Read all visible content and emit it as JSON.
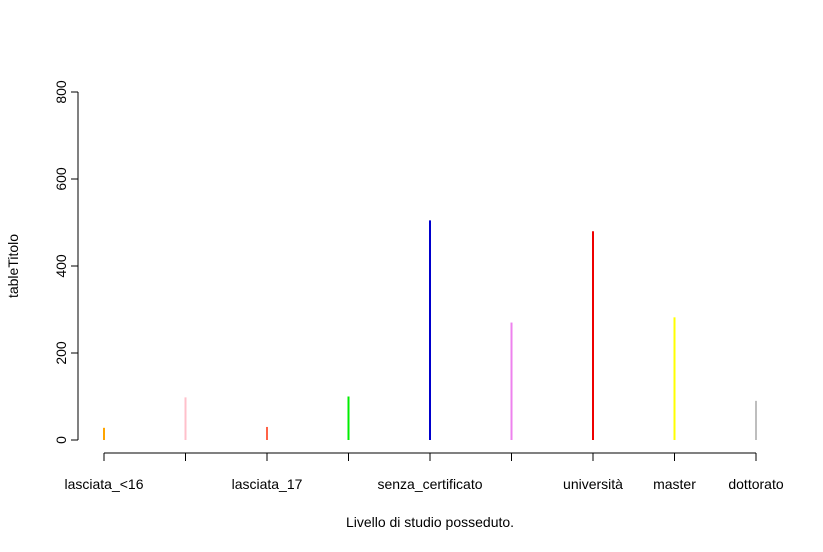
{
  "chart_data": {
    "type": "bar",
    "style": "histogram-spikes",
    "title": "",
    "xlabel": "Livello di studio posseduto.",
    "ylabel": "tableTitolo",
    "ylim": [
      0,
      800
    ],
    "yticks": [
      0,
      200,
      400,
      600,
      800
    ],
    "grid": false,
    "legend": "none",
    "categories": [
      "lasciata_<16",
      "",
      "lasciata_17",
      "",
      "senza_certificato",
      "",
      "università",
      "master",
      "dottorato"
    ],
    "values": [
      28,
      98,
      30,
      100,
      505,
      270,
      480,
      282,
      90
    ],
    "colors": [
      "#FFA500",
      "#FFC0CB",
      "#FF6347",
      "#00EE00",
      "#0000CD",
      "#EE82EE",
      "#EE0000",
      "#FFFF00",
      "#BEBEBE"
    ]
  }
}
